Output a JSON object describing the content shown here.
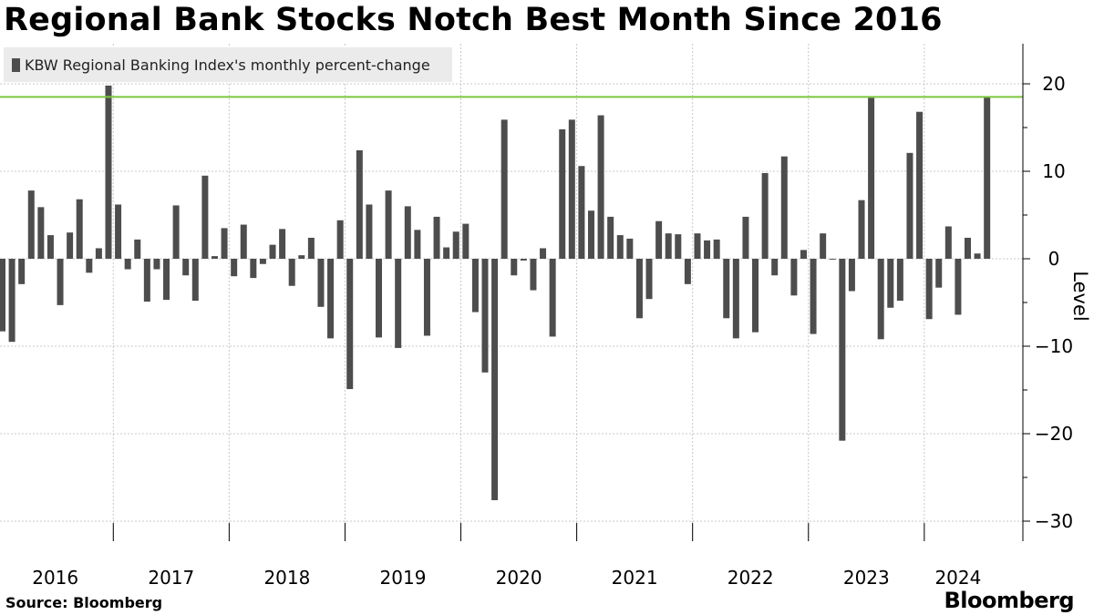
{
  "title": "Regional Bank Stocks Notch Best Month Since 2016",
  "source": "Source: Bloomberg",
  "brand": "Bloomberg",
  "colors": {
    "bar": "#4d4d4d",
    "reference_line": "#7dc63c",
    "legend_bg": "#ebebeb",
    "grid": "#c8c8c8"
  },
  "chart_data": {
    "type": "bar",
    "legend": [
      "KBW Regional Banking Index's monthly percent-change"
    ],
    "ylabel": "Level",
    "ylim": [
      -32,
      24
    ],
    "yticks": [
      20,
      10,
      0,
      -10,
      -20,
      -30
    ],
    "grid": true,
    "legend_position": "top-left",
    "axis_position": "right",
    "reference_line": 18.5,
    "year_labels": [
      "2016",
      "2017",
      "2018",
      "2019",
      "2020",
      "2021",
      "2022",
      "2023",
      "2024"
    ],
    "x": [
      "2016-01",
      "2016-02",
      "2016-03",
      "2016-04",
      "2016-05",
      "2016-06",
      "2016-07",
      "2016-08",
      "2016-09",
      "2016-10",
      "2016-11",
      "2016-12",
      "2017-01",
      "2017-02",
      "2017-03",
      "2017-04",
      "2017-05",
      "2017-06",
      "2017-07",
      "2017-08",
      "2017-09",
      "2017-10",
      "2017-11",
      "2017-12",
      "2018-01",
      "2018-02",
      "2018-03",
      "2018-04",
      "2018-05",
      "2018-06",
      "2018-07",
      "2018-08",
      "2018-09",
      "2018-10",
      "2018-11",
      "2018-12",
      "2019-01",
      "2019-02",
      "2019-03",
      "2019-04",
      "2019-05",
      "2019-06",
      "2019-07",
      "2019-08",
      "2019-09",
      "2019-10",
      "2019-11",
      "2019-12",
      "2020-01",
      "2020-02",
      "2020-03",
      "2020-04",
      "2020-05",
      "2020-06",
      "2020-07",
      "2020-08",
      "2020-09",
      "2020-10",
      "2020-11",
      "2020-12",
      "2021-01",
      "2021-02",
      "2021-03",
      "2021-04",
      "2021-05",
      "2021-06",
      "2021-07",
      "2021-08",
      "2021-09",
      "2021-10",
      "2021-11",
      "2021-12",
      "2022-01",
      "2022-02",
      "2022-03",
      "2022-04",
      "2022-05",
      "2022-06",
      "2022-07",
      "2022-08",
      "2022-09",
      "2022-10",
      "2022-11",
      "2022-12",
      "2023-01",
      "2023-02",
      "2023-03",
      "2023-04",
      "2023-05",
      "2023-06",
      "2023-07",
      "2023-08",
      "2023-09",
      "2023-10",
      "2023-11",
      "2023-12",
      "2024-01",
      "2024-02",
      "2024-03",
      "2024-04",
      "2024-05",
      "2024-06",
      "2024-07"
    ],
    "series": [
      {
        "values": [
          -8.3,
          -9.5,
          -2.9,
          7.8,
          5.9,
          2.7,
          -5.3,
          3.0,
          6.8,
          -1.6,
          1.2,
          19.8,
          6.2,
          -1.2,
          2.2,
          -4.9,
          -1.2,
          -4.7,
          6.1,
          -1.9,
          -4.8,
          9.5,
          0.3,
          3.5,
          -2.0,
          3.9,
          -2.2,
          -0.6,
          1.6,
          3.4,
          -3.1,
          0.4,
          2.4,
          -5.5,
          -9.1,
          4.4,
          -14.9,
          12.4,
          6.2,
          -9.0,
          7.8,
          -10.2,
          6.0,
          3.3,
          -8.8,
          4.8,
          1.3,
          3.1,
          4.0,
          -6.1,
          -13.0,
          -27.6,
          15.9,
          -1.9,
          -0.2,
          -3.6,
          1.2,
          -8.9,
          14.8,
          15.9,
          10.6,
          5.5,
          16.4,
          4.8,
          2.7,
          2.3,
          -6.8,
          -4.6,
          4.3,
          2.9,
          2.8,
          -2.9,
          2.9,
          2.1,
          2.2,
          -6.8,
          -9.1,
          4.8,
          -8.4,
          9.8,
          -1.9,
          11.7,
          -4.2,
          1.0,
          -8.6,
          2.9,
          -0.1,
          -20.8,
          -3.7,
          6.7,
          18.4,
          -9.2,
          -5.6,
          -4.8,
          12.1,
          16.8,
          -6.9,
          -3.3,
          3.7,
          -6.4,
          2.4,
          0.6,
          18.5
        ]
      }
    ]
  }
}
